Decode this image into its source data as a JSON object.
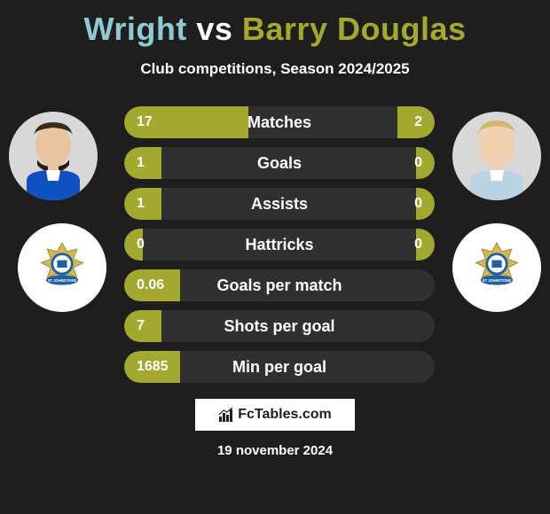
{
  "title": {
    "player1": "Wright",
    "vs": "vs",
    "player2": "Barry Douglas",
    "player1_color": "#8fc9d4",
    "player2_color": "#a3a82f"
  },
  "subtitle": "Club competitions, Season 2024/2025",
  "stats": {
    "bar_color": "#a3a82f",
    "bg_color": "#303030",
    "rows": [
      {
        "label": "Matches",
        "left_value": "17",
        "right_value": "2",
        "left_pct": 40,
        "right_pct": 12
      },
      {
        "label": "Goals",
        "left_value": "1",
        "right_value": "0",
        "left_pct": 12,
        "right_pct": 6
      },
      {
        "label": "Assists",
        "left_value": "1",
        "right_value": "0",
        "left_pct": 12,
        "right_pct": 6
      },
      {
        "label": "Hattricks",
        "left_value": "0",
        "right_value": "0",
        "left_pct": 6,
        "right_pct": 6
      },
      {
        "label": "Goals per match",
        "left_value": "0.06",
        "right_value": "",
        "left_pct": 18,
        "right_pct": 0
      },
      {
        "label": "Shots per goal",
        "left_value": "7",
        "right_value": "",
        "left_pct": 12,
        "right_pct": 0
      },
      {
        "label": "Min per goal",
        "left_value": "1685",
        "right_value": "",
        "left_pct": 18,
        "right_pct": 0
      }
    ]
  },
  "branding": "FcTables.com",
  "date": "19 november 2024",
  "colors": {
    "background": "#1e1e1e",
    "text": "#ffffff"
  }
}
